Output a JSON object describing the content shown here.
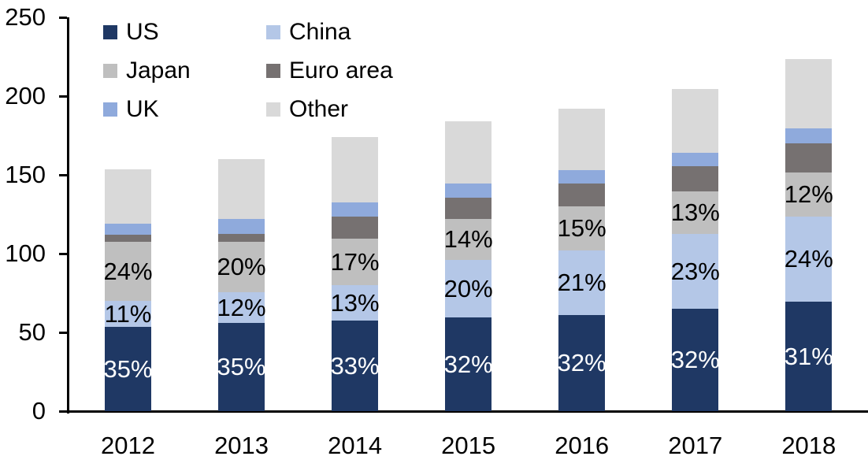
{
  "chart_data": {
    "type": "bar",
    "stacked": true,
    "title": "",
    "xlabel": "",
    "ylabel": "",
    "ylim": [
      0,
      250
    ],
    "yticks": [
      "0",
      "50",
      "100",
      "150",
      "200",
      "250"
    ],
    "grid": false,
    "legend_position": "top-left",
    "legend_order": [
      "US",
      "China",
      "Japan",
      "Euro area",
      "UK",
      "Other"
    ],
    "categories": [
      "2012",
      "2013",
      "2014",
      "2015",
      "2016",
      "2017",
      "2018"
    ],
    "series": [
      {
        "name": "US",
        "color": "#1F3864",
        "values": [
          53.5,
          56,
          57.5,
          59.5,
          61,
          65,
          69.5
        ],
        "labels": [
          "35%",
          "35%",
          "33%",
          "32%",
          "32%",
          "32%",
          "31%"
        ],
        "label_color": "#FFFFFF"
      },
      {
        "name": "China",
        "color": "#B4C7E7",
        "values": [
          16.5,
          19.5,
          22.5,
          36.5,
          41,
          47.5,
          54
        ],
        "labels": [
          "11%",
          "12%",
          "13%",
          "20%",
          "21%",
          "23%",
          "24%"
        ],
        "label_color": "#000000"
      },
      {
        "name": "Japan",
        "color": "#BFBFBF",
        "values": [
          37.5,
          32,
          29.5,
          26,
          28,
          27,
          28
        ],
        "labels": [
          "24%",
          "20%",
          "17%",
          "14%",
          "15%",
          "13%",
          "12%"
        ],
        "label_color": "#000000"
      },
      {
        "name": "Euro area",
        "color": "#767171",
        "values": [
          4.5,
          5,
          14,
          13.5,
          14.5,
          16,
          18.5
        ],
        "labels": null,
        "label_color": null
      },
      {
        "name": "UK",
        "color": "#8FAADC",
        "values": [
          7,
          9.5,
          9,
          9,
          8.5,
          8.5,
          9.5
        ],
        "labels": null,
        "label_color": null
      },
      {
        "name": "Other",
        "color": "#D9D9D9",
        "values": [
          34.5,
          38,
          41.5,
          39.5,
          39,
          40.5,
          44
        ],
        "labels": null,
        "label_color": null
      }
    ],
    "totals": [
      153.5,
      160,
      174,
      184,
      192,
      204.5,
      223.5
    ],
    "axis_color": "#000000",
    "text_color": "#000000",
    "background_color": "#FFFFFF"
  }
}
